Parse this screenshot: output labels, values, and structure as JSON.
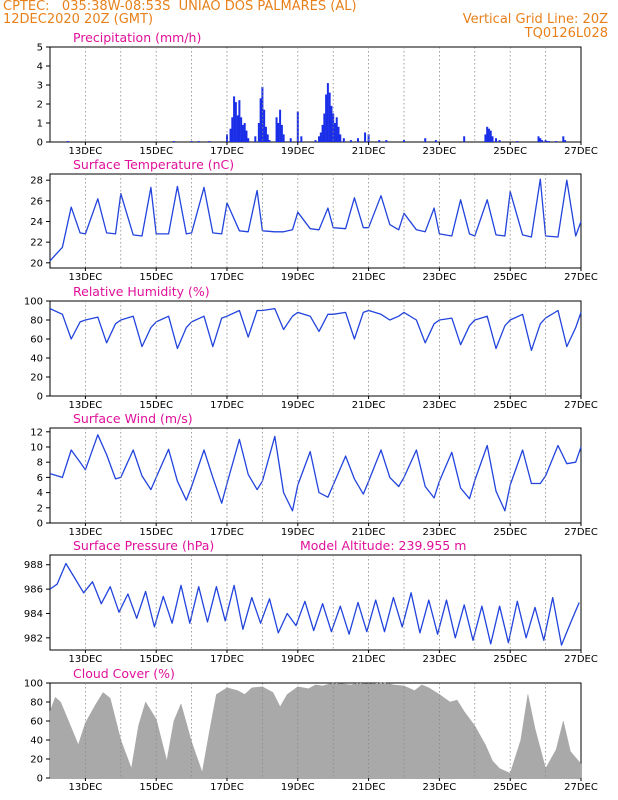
{
  "header": {
    "line1_left": "CPTEC:   035:38W-08:53S  UNIAO DOS PALMARES (AL)",
    "line2_left": "12DEC2020 20Z (GMT)",
    "line2_right": "Vertical Grid Line: 20Z",
    "line3_right": "TQ0126L028"
  },
  "colors": {
    "header": "#e8801a",
    "title": "#e0109a",
    "line": "#2244dd",
    "bar": "#1a2ee8",
    "cloud": "#a9a9a9",
    "grid": "#888888"
  },
  "chart_data": [
    {
      "type": "bar",
      "title": "Precipitation (mm/h)",
      "x_ticks": [
        "13DEC",
        "15DEC",
        "17DEC",
        "19DEC",
        "21DEC",
        "23DEC",
        "25DEC",
        "27DEC"
      ],
      "ylim": [
        0,
        5
      ],
      "y_ticks": [
        "0",
        "1",
        "2",
        "3",
        "4",
        "5"
      ],
      "x": [
        0.5,
        3.5,
        4.0,
        4.2,
        4.5,
        5.0,
        5.1,
        5.15,
        5.2,
        5.25,
        5.3,
        5.35,
        5.4,
        5.45,
        5.5,
        5.55,
        5.6,
        5.8,
        5.9,
        5.95,
        6.0,
        6.05,
        6.1,
        6.15,
        6.2,
        6.4,
        6.45,
        6.5,
        6.55,
        6.6,
        6.8,
        7.0,
        7.1,
        7.5,
        7.6,
        7.65,
        7.7,
        7.75,
        7.8,
        7.85,
        7.9,
        7.95,
        8.0,
        8.05,
        8.1,
        8.15,
        8.2,
        8.3,
        8.5,
        8.7,
        8.9,
        9.0,
        9.3,
        9.5,
        10.0,
        10.6,
        10.9,
        11.7,
        12.3,
        12.35,
        12.4,
        12.45,
        12.5,
        12.6,
        12.7,
        13.2,
        13.8,
        13.85,
        13.9,
        14.0,
        14.05,
        14.1,
        14.3,
        14.5,
        14.55
      ],
      "values": [
        0.05,
        0.05,
        0.05,
        0.05,
        0.05,
        0.4,
        0.7,
        1.3,
        2.4,
        2.1,
        1.4,
        2.2,
        1.3,
        0.9,
        1.0,
        0.6,
        0.2,
        0.3,
        1.0,
        2.3,
        2.9,
        1.7,
        0.8,
        0.4,
        0.1,
        1.3,
        1.0,
        1.7,
        0.9,
        0.4,
        0.2,
        1.6,
        0.3,
        0.1,
        0.3,
        0.5,
        0.9,
        1.5,
        2.5,
        3.1,
        2.6,
        1.9,
        1.5,
        1.0,
        1.3,
        0.8,
        0.4,
        0.2,
        0.1,
        0.2,
        0.5,
        0.4,
        0.1,
        0.1,
        0.1,
        0.2,
        0.1,
        0.3,
        0.4,
        0.8,
        0.7,
        0.6,
        0.3,
        0.2,
        0.1,
        0.05,
        0.3,
        0.2,
        0.1,
        0.1,
        0.05,
        0.05,
        0.05,
        0.3,
        0.1
      ]
    },
    {
      "type": "line",
      "title": "Surface Temperature (nC)",
      "x_ticks": [
        "13DEC",
        "15DEC",
        "17DEC",
        "19DEC",
        "21DEC",
        "23DEC",
        "25DEC",
        "27DEC"
      ],
      "ylim": [
        19.5,
        28.6
      ],
      "y_ticks": [
        "20",
        "22",
        "24",
        "26",
        "28"
      ],
      "x": [
        0,
        0.35,
        0.6,
        0.85,
        1.0,
        1.35,
        1.6,
        1.85,
        2.0,
        2.35,
        2.6,
        2.85,
        3.0,
        3.35,
        3.6,
        3.85,
        4.0,
        4.35,
        4.6,
        4.85,
        5.0,
        5.35,
        5.6,
        5.85,
        6.0,
        6.35,
        6.6,
        6.85,
        7.0,
        7.35,
        7.6,
        7.85,
        8.0,
        8.35,
        8.6,
        8.85,
        9.0,
        9.35,
        9.6,
        9.85,
        10.0,
        10.35,
        10.6,
        10.85,
        11.0,
        11.35,
        11.6,
        11.85,
        12.0,
        12.35,
        12.6,
        12.85,
        13.0,
        13.35,
        13.6,
        13.85,
        14.0,
        14.35,
        14.6,
        14.85,
        15.0
      ],
      "values": [
        20.2,
        21.5,
        25.4,
        22.9,
        22.8,
        26.2,
        22.9,
        22.8,
        26.7,
        22.7,
        22.6,
        27.3,
        22.8,
        22.8,
        27.4,
        22.8,
        22.9,
        27.3,
        22.9,
        22.8,
        25.8,
        23.1,
        23.0,
        27.0,
        23.1,
        23.0,
        23.0,
        23.2,
        24.9,
        23.3,
        23.2,
        25.3,
        23.4,
        23.3,
        26.3,
        23.4,
        23.4,
        26.5,
        23.7,
        23.2,
        24.8,
        23.2,
        23.0,
        25.3,
        22.8,
        22.6,
        26.1,
        22.8,
        22.6,
        26.1,
        22.7,
        22.6,
        26.9,
        22.7,
        22.5,
        28.1,
        22.6,
        22.5,
        28.0,
        22.6,
        24.0
      ]
    },
    {
      "type": "line",
      "title": "Relative Humidity (%)",
      "x_ticks": [
        "13DEC",
        "15DEC",
        "17DEC",
        "19DEC",
        "21DEC",
        "23DEC",
        "25DEC",
        "27DEC"
      ],
      "ylim": [
        0,
        100
      ],
      "y_ticks": [
        "0",
        "20",
        "40",
        "60",
        "80",
        "100"
      ],
      "x": [
        0,
        0.35,
        0.6,
        0.85,
        1.0,
        1.35,
        1.6,
        1.85,
        2.0,
        2.35,
        2.6,
        2.85,
        3.0,
        3.35,
        3.6,
        3.85,
        4.0,
        4.35,
        4.6,
        4.85,
        5.0,
        5.35,
        5.6,
        5.85,
        6.0,
        6.35,
        6.6,
        6.85,
        7.0,
        7.35,
        7.6,
        7.85,
        8.0,
        8.35,
        8.6,
        8.85,
        9.0,
        9.35,
        9.6,
        9.85,
        10.0,
        10.35,
        10.6,
        10.85,
        11.0,
        11.35,
        11.6,
        11.85,
        12.0,
        12.35,
        12.6,
        12.85,
        13.0,
        13.35,
        13.6,
        13.85,
        14.0,
        14.35,
        14.6,
        14.85,
        15.0
      ],
      "values": [
        92,
        86,
        60,
        78,
        80,
        83,
        56,
        76,
        80,
        84,
        52,
        72,
        78,
        84,
        50,
        72,
        78,
        84,
        52,
        82,
        84,
        90,
        62,
        90,
        90,
        92,
        70,
        84,
        88,
        84,
        68,
        86,
        86,
        88,
        60,
        88,
        90,
        86,
        80,
        84,
        88,
        80,
        56,
        76,
        80,
        82,
        54,
        74,
        80,
        84,
        50,
        74,
        80,
        86,
        48,
        76,
        82,
        90,
        52,
        72,
        88
      ]
    },
    {
      "type": "line",
      "title": "Surface Wind (m/s)",
      "x_ticks": [
        "13DEC",
        "15DEC",
        "17DEC",
        "19DEC",
        "21DEC",
        "23DEC",
        "25DEC",
        "27DEC"
      ],
      "ylim": [
        0,
        12.5
      ],
      "y_ticks": [
        "0",
        "2",
        "4",
        "6",
        "8",
        "10",
        "12"
      ],
      "x": [
        0,
        0.35,
        0.6,
        0.85,
        1.0,
        1.35,
        1.6,
        1.85,
        2.0,
        2.35,
        2.6,
        2.85,
        3.0,
        3.35,
        3.6,
        3.85,
        4.0,
        4.35,
        4.6,
        4.85,
        5.0,
        5.35,
        5.6,
        5.85,
        6.0,
        6.35,
        6.6,
        6.85,
        7.0,
        7.35,
        7.6,
        7.85,
        8.0,
        8.35,
        8.6,
        8.85,
        9.0,
        9.35,
        9.6,
        9.85,
        10.0,
        10.35,
        10.6,
        10.85,
        11.0,
        11.35,
        11.6,
        11.85,
        12.0,
        12.35,
        12.6,
        12.85,
        13.0,
        13.35,
        13.6,
        13.85,
        14.0,
        14.35,
        14.6,
        14.85,
        15.0
      ],
      "values": [
        6.5,
        6.0,
        9.6,
        8.0,
        7.0,
        11.6,
        9.0,
        5.8,
        6.0,
        9.6,
        6.2,
        4.4,
        6.0,
        9.7,
        5.5,
        3.0,
        4.8,
        9.6,
        6.0,
        2.6,
        5.2,
        11.0,
        6.4,
        4.4,
        5.5,
        11.4,
        4.0,
        1.6,
        5.0,
        9.4,
        4.0,
        3.4,
        5.0,
        8.8,
        5.8,
        3.8,
        5.5,
        9.6,
        6.0,
        4.8,
        6.0,
        9.6,
        4.8,
        3.3,
        5.5,
        9.3,
        4.6,
        3.2,
        5.6,
        10.2,
        4.2,
        1.6,
        5.0,
        9.6,
        5.2,
        5.2,
        6.2,
        10.2,
        7.8,
        8.0,
        10.0
      ]
    },
    {
      "type": "line",
      "title": "Surface Pressure (hPa)",
      "annotation": "Model Altitude: 239.955 m",
      "x_ticks": [
        "13DEC",
        "15DEC",
        "17DEC",
        "19DEC",
        "21DEC",
        "23DEC",
        "25DEC",
        "27DEC"
      ],
      "ylim": [
        981.0,
        988.8
      ],
      "y_ticks": [
        "982",
        "984",
        "986",
        "988"
      ],
      "x": [
        0,
        0.2,
        0.45,
        0.7,
        0.95,
        1.2,
        1.45,
        1.7,
        1.95,
        2.2,
        2.45,
        2.7,
        2.95,
        3.2,
        3.45,
        3.7,
        3.95,
        4.2,
        4.45,
        4.7,
        4.95,
        5.2,
        5.45,
        5.7,
        5.95,
        6.2,
        6.45,
        6.7,
        6.95,
        7.2,
        7.45,
        7.7,
        7.95,
        8.2,
        8.45,
        8.7,
        8.95,
        9.2,
        9.45,
        9.7,
        9.95,
        10.2,
        10.45,
        10.7,
        10.95,
        11.2,
        11.45,
        11.7,
        11.95,
        12.2,
        12.45,
        12.7,
        12.95,
        13.2,
        13.45,
        13.7,
        13.95,
        14.2,
        14.45,
        14.7,
        14.95
      ],
      "values": [
        986.0,
        986.4,
        988.1,
        986.9,
        985.7,
        986.6,
        984.8,
        986.2,
        984.1,
        985.6,
        983.6,
        985.8,
        982.9,
        985.4,
        983.2,
        986.3,
        983.2,
        986.2,
        983.3,
        986.2,
        983.4,
        986.3,
        982.7,
        985.3,
        983.2,
        985.2,
        982.4,
        984.0,
        983.0,
        985.0,
        982.6,
        984.8,
        982.5,
        984.6,
        982.3,
        984.9,
        982.5,
        985.1,
        982.5,
        985.3,
        982.9,
        985.7,
        982.4,
        985.1,
        982.3,
        985.1,
        982.0,
        984.7,
        981.8,
        984.6,
        981.5,
        984.6,
        981.6,
        985.0,
        982.0,
        984.5,
        981.8,
        985.3,
        981.4,
        983.2,
        984.9
      ]
    },
    {
      "type": "area",
      "title": "Cloud Cover (%)",
      "x_ticks": [
        "13DEC",
        "15DEC",
        "17DEC",
        "19DEC",
        "21DEC",
        "23DEC",
        "25DEC",
        "27DEC"
      ],
      "ylim": [
        0,
        100
      ],
      "y_ticks": [
        "0",
        "20",
        "40",
        "60",
        "80",
        "100"
      ],
      "x": [
        0,
        0.15,
        0.3,
        0.5,
        0.8,
        1.0,
        1.3,
        1.5,
        1.7,
        2.0,
        2.3,
        2.5,
        2.7,
        3.0,
        3.3,
        3.5,
        3.7,
        4.0,
        4.3,
        4.5,
        4.7,
        5.0,
        5.3,
        5.5,
        5.7,
        6.0,
        6.3,
        6.5,
        6.7,
        7.0,
        7.3,
        7.5,
        7.7,
        8.0,
        8.3,
        8.5,
        8.7,
        9.0,
        9.3,
        9.5,
        9.7,
        10.0,
        10.3,
        10.5,
        10.7,
        11.0,
        11.3,
        11.5,
        11.7,
        12.0,
        12.3,
        12.5,
        12.7,
        13.0,
        13.3,
        13.5,
        13.7,
        14.0,
        14.3,
        14.5,
        14.7,
        15.0
      ],
      "values": [
        70,
        85,
        80,
        62,
        35,
        58,
        78,
        90,
        84,
        40,
        10,
        55,
        80,
        62,
        18,
        60,
        78,
        38,
        6,
        48,
        88,
        95,
        92,
        88,
        95,
        96,
        90,
        75,
        88,
        96,
        94,
        98,
        97,
        100,
        99,
        98,
        100,
        99,
        100,
        100,
        98,
        97,
        92,
        98,
        95,
        88,
        80,
        82,
        70,
        55,
        35,
        18,
        10,
        5,
        40,
        88,
        52,
        10,
        30,
        60,
        28,
        15
      ]
    }
  ]
}
